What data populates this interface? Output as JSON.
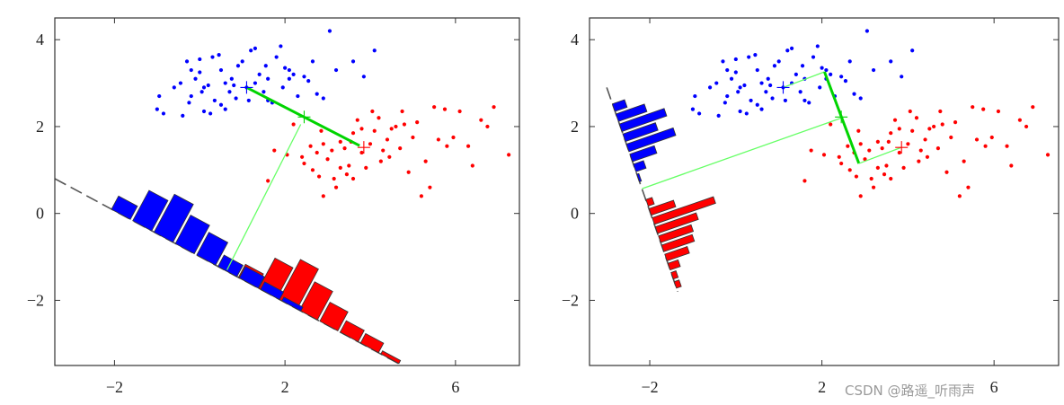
{
  "watermark": "CSDN @路遥_听雨声",
  "colors": {
    "class1": "#0000ff",
    "class2": "#ff0000",
    "mean_line": "#00d400",
    "projection": "#66ff66",
    "axis_line": "#555555"
  },
  "chart_data": [
    {
      "type": "scatter",
      "xlim": [
        -3.4,
        7.5
      ],
      "ylim": [
        -3.5,
        4.5
      ],
      "xticks": [
        -2,
        2,
        6
      ],
      "yticks": [
        -2,
        0,
        2,
        4
      ],
      "xtick_labels": [
        "−2",
        "2",
        "6"
      ],
      "ytick_labels": [
        "−2",
        "0",
        "2",
        "4"
      ],
      "grid": false,
      "means": {
        "class1": [
          1.1,
          2.9
        ],
        "class2": [
          3.85,
          1.52
        ],
        "midpoint": [
          2.45,
          2.22
        ]
      },
      "mean_connector": {
        "thick": [
          [
            1.1,
            2.9
          ],
          [
            3.75,
            1.56
          ]
        ]
      },
      "projection_segment": [
        [
          2.37,
          2.05
        ],
        [
          0.64,
          -1.3
        ]
      ],
      "projection_line": [
        [
          -3.4,
          0.8
        ],
        [
          4.75,
          -3.5
        ]
      ],
      "histograms": [
        {
          "class": "class2",
          "start": [
            0.4,
            -1.21
          ],
          "end": [
            4.7,
            -3.47
          ],
          "heights": [
            0.25,
            0.35,
            0.8,
            1.05,
            0.75,
            0.5,
            0.3,
            0.25,
            0.08
          ]
        },
        {
          "class": "class1",
          "start": [
            -2.1,
            0.11
          ],
          "end": [
            2.4,
            -2.26
          ],
          "heights": [
            0.35,
            0.8,
            1.0,
            0.75,
            0.6,
            0.3,
            0.3,
            0.2,
            0.1
          ]
        }
      ]
    },
    {
      "type": "scatter",
      "xlim": [
        -3.4,
        7.5
      ],
      "ylim": [
        -3.5,
        4.5
      ],
      "xticks": [
        -2,
        2,
        6
      ],
      "yticks": [
        -2,
        0,
        2,
        4
      ],
      "xtick_labels": [
        "−2",
        "2",
        "6"
      ],
      "ytick_labels": [
        "−2",
        "0",
        "2",
        "4"
      ],
      "grid": false,
      "means": {
        "class1": [
          1.1,
          2.9
        ],
        "class2": [
          3.85,
          1.52
        ],
        "midpoint": [
          2.45,
          2.22
        ]
      },
      "mean_connector": {
        "thin_a": [
          [
            1.1,
            2.9
          ],
          [
            2.06,
            3.26
          ]
        ],
        "thick": [
          [
            2.06,
            3.26
          ],
          [
            2.86,
            1.15
          ]
        ],
        "thin_b": [
          [
            2.86,
            1.15
          ],
          [
            3.85,
            1.52
          ]
        ]
      },
      "projection_segment": [
        [
          2.46,
          2.2
        ],
        [
          -2.18,
          0.57
        ]
      ],
      "projection_line": [
        [
          -3.0,
          2.9
        ],
        [
          -1.35,
          -1.8
        ]
      ],
      "histograms": [
        {
          "class": "class1",
          "start": [
            -2.88,
            2.55
          ],
          "end": [
            -2.23,
            0.7
          ],
          "heights": [
            0.3,
            0.7,
            1.1,
            0.8,
            1.15,
            0.6,
            0.25,
            0.05
          ]
        },
        {
          "class": "class2",
          "start": [
            -2.1,
            0.35
          ],
          "end": [
            -1.37,
            -1.75
          ],
          "heights": [
            0.15,
            0.6,
            1.5,
            1.0,
            0.8,
            0.75,
            0.55,
            0.25,
            0.12,
            0.12
          ]
        }
      ]
    }
  ],
  "points": {
    "class1": [
      [
        -1.0,
        2.4
      ],
      [
        -0.85,
        2.3
      ],
      [
        -0.95,
        2.7
      ],
      [
        -0.4,
        2.25
      ],
      [
        -0.6,
        2.9
      ],
      [
        -0.45,
        3.0
      ],
      [
        -0.3,
        3.5
      ],
      [
        -0.2,
        3.3
      ],
      [
        -0.1,
        3.1
      ],
      [
        0.0,
        3.25
      ],
      [
        0.1,
        2.9
      ],
      [
        -0.2,
        2.7
      ],
      [
        0.05,
        2.8
      ],
      [
        0.2,
        2.95
      ],
      [
        0.3,
        3.6
      ],
      [
        0.45,
        3.65
      ],
      [
        0.5,
        3.3
      ],
      [
        0.6,
        3.0
      ],
      [
        0.35,
        2.6
      ],
      [
        0.5,
        2.5
      ],
      [
        0.7,
        2.8
      ],
      [
        0.75,
        3.1
      ],
      [
        0.85,
        2.65
      ],
      [
        0.9,
        3.4
      ],
      [
        1.0,
        3.5
      ],
      [
        1.1,
        2.9
      ],
      [
        1.2,
        3.75
      ],
      [
        1.3,
        3.8
      ],
      [
        1.15,
        2.6
      ],
      [
        1.4,
        3.2
      ],
      [
        1.5,
        2.8
      ],
      [
        1.55,
        3.4
      ],
      [
        1.6,
        2.6
      ],
      [
        1.8,
        3.6
      ],
      [
        1.9,
        3.85
      ],
      [
        2.0,
        3.35
      ],
      [
        2.1,
        3.3
      ],
      [
        1.95,
        2.9
      ],
      [
        2.2,
        3.2
      ],
      [
        2.3,
        2.7
      ],
      [
        2.45,
        3.15
      ],
      [
        2.55,
        3.05
      ],
      [
        2.65,
        3.5
      ],
      [
        2.75,
        2.75
      ],
      [
        2.9,
        2.65
      ],
      [
        3.05,
        4.2
      ],
      [
        3.2,
        3.3
      ],
      [
        3.6,
        3.5
      ],
      [
        3.85,
        3.15
      ],
      [
        4.1,
        3.75
      ],
      [
        0.25,
        2.3
      ],
      [
        0.6,
        2.4
      ],
      [
        1.7,
        2.55
      ],
      [
        0.1,
        2.35
      ],
      [
        -0.25,
        2.55
      ],
      [
        1.3,
        3.0
      ],
      [
        0.8,
        2.95
      ],
      [
        2.1,
        3.1
      ],
      [
        1.6,
        3.1
      ],
      [
        0.0,
        3.55
      ]
    ],
    "class2": [
      [
        1.6,
        0.75
      ],
      [
        1.75,
        1.45
      ],
      [
        2.05,
        1.35
      ],
      [
        2.4,
        1.3
      ],
      [
        2.45,
        1.15
      ],
      [
        2.6,
        1.55
      ],
      [
        2.65,
        1.0
      ],
      [
        2.75,
        1.4
      ],
      [
        2.8,
        0.85
      ],
      [
        2.9,
        1.6
      ],
      [
        3.0,
        1.25
      ],
      [
        3.1,
        1.45
      ],
      [
        3.15,
        0.8
      ],
      [
        3.2,
        0.6
      ],
      [
        3.3,
        1.65
      ],
      [
        3.4,
        1.5
      ],
      [
        3.45,
        0.9
      ],
      [
        3.5,
        1.1
      ],
      [
        3.6,
        1.85
      ],
      [
        3.7,
        2.15
      ],
      [
        3.8,
        1.4
      ],
      [
        3.9,
        1.05
      ],
      [
        4.0,
        1.6
      ],
      [
        4.1,
        1.9
      ],
      [
        4.2,
        2.2
      ],
      [
        4.25,
        1.2
      ],
      [
        4.4,
        1.7
      ],
      [
        4.5,
        1.95
      ],
      [
        4.6,
        2.0
      ],
      [
        4.7,
        1.5
      ],
      [
        4.75,
        2.35
      ],
      [
        4.9,
        0.95
      ],
      [
        5.0,
        1.75
      ],
      [
        5.1,
        2.1
      ],
      [
        5.2,
        0.4
      ],
      [
        5.3,
        1.2
      ],
      [
        5.4,
        0.6
      ],
      [
        5.5,
        2.45
      ],
      [
        5.6,
        1.7
      ],
      [
        5.8,
        1.55
      ],
      [
        5.95,
        1.75
      ],
      [
        6.1,
        2.35
      ],
      [
        6.3,
        1.55
      ],
      [
        6.4,
        1.1
      ],
      [
        6.6,
        2.15
      ],
      [
        6.75,
        2.0
      ],
      [
        6.9,
        2.45
      ],
      [
        7.25,
        1.35
      ],
      [
        2.2,
        2.05
      ],
      [
        3.8,
        1.95
      ],
      [
        4.45,
        1.3
      ],
      [
        2.9,
        0.4
      ],
      [
        3.55,
        1.65
      ],
      [
        4.05,
        2.35
      ],
      [
        4.8,
        2.05
      ],
      [
        2.85,
        1.9
      ],
      [
        3.3,
        1.05
      ],
      [
        5.75,
        2.4
      ],
      [
        3.6,
        0.8
      ],
      [
        4.3,
        1.45
      ]
    ]
  }
}
